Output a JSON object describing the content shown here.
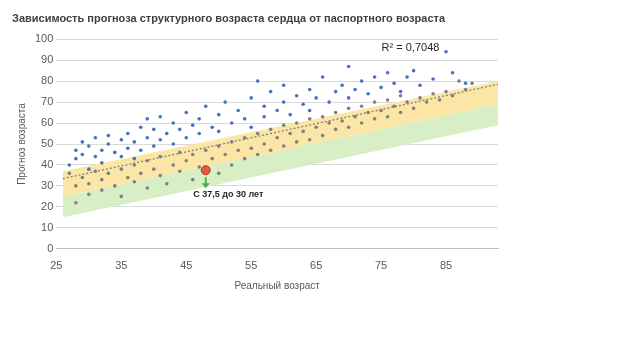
{
  "chart_data": {
    "type": "scatter",
    "title": "Зависимость прогноза структурного возраста сердца от паспортного возраста",
    "x_label": "Реальный возраст",
    "y_label": "Прогноз возраста",
    "xlim": [
      25,
      93
    ],
    "xticks": [
      25,
      35,
      45,
      55,
      65,
      75,
      85
    ],
    "ylim": [
      0,
      100
    ],
    "yticks": [
      0,
      10,
      20,
      30,
      40,
      50,
      60,
      70,
      80,
      90,
      100
    ],
    "grid": true,
    "annotations": [
      {
        "text": "R² = 0,7048",
        "x": 76,
        "y": 96
      },
      {
        "text": "С 37,5 до 30 лет",
        "x": 47,
        "y": 26
      }
    ],
    "series": [
      {
        "type": "band",
        "color": "#fce6a6",
        "upper": [
          [
            26,
            37
          ],
          [
            93,
            80
          ]
        ],
        "lower": [
          [
            26,
            25
          ],
          [
            93,
            69
          ]
        ]
      },
      {
        "type": "band",
        "color": "#d8efc6",
        "upper": [
          [
            26,
            25
          ],
          [
            93,
            69
          ]
        ],
        "lower": [
          [
            26,
            15
          ],
          [
            93,
            59
          ]
        ]
      },
      {
        "type": "line",
        "line_style": "dotted",
        "color": "#7f7f7f",
        "values": [
          [
            26,
            33.5
          ],
          [
            93,
            78.5
          ]
        ]
      },
      {
        "type": "scatter",
        "marker": "dot",
        "color": "#4472c4",
        "values": [
          [
            27,
            40
          ],
          [
            28,
            43
          ],
          [
            28,
            47
          ],
          [
            29,
            45
          ],
          [
            29,
            51
          ],
          [
            30,
            38
          ],
          [
            30,
            49
          ],
          [
            31,
            44
          ],
          [
            31,
            53
          ],
          [
            32,
            41
          ],
          [
            32,
            47
          ],
          [
            33,
            54
          ],
          [
            33,
            50
          ],
          [
            34,
            46
          ],
          [
            35,
            44
          ],
          [
            35,
            52
          ],
          [
            36,
            48
          ],
          [
            36,
            55
          ],
          [
            37,
            43
          ],
          [
            37,
            51
          ],
          [
            38,
            47
          ],
          [
            38,
            58
          ],
          [
            39,
            53
          ],
          [
            39,
            62
          ],
          [
            40,
            49
          ],
          [
            40,
            57
          ],
          [
            41,
            52
          ],
          [
            41,
            63
          ],
          [
            42,
            55
          ],
          [
            43,
            50
          ],
          [
            43,
            60
          ],
          [
            44,
            57
          ],
          [
            45,
            53
          ],
          [
            45,
            65
          ],
          [
            46,
            59
          ],
          [
            47,
            62
          ],
          [
            47,
            55
          ],
          [
            48,
            68
          ],
          [
            49,
            58
          ],
          [
            50,
            64
          ],
          [
            50,
            56
          ],
          [
            51,
            70
          ],
          [
            52,
            60
          ],
          [
            53,
            66
          ],
          [
            54,
            62
          ],
          [
            55,
            72
          ],
          [
            55,
            58
          ],
          [
            56,
            80
          ],
          [
            57,
            68
          ],
          [
            57,
            63
          ],
          [
            58,
            75
          ],
          [
            59,
            66
          ],
          [
            60,
            70
          ],
          [
            60,
            78
          ],
          [
            61,
            64
          ],
          [
            62,
            73
          ],
          [
            63,
            69
          ],
          [
            64,
            76
          ],
          [
            64,
            66
          ],
          [
            65,
            72
          ],
          [
            66,
            82
          ],
          [
            67,
            70
          ],
          [
            68,
            75
          ],
          [
            69,
            78
          ],
          [
            70,
            87
          ],
          [
            70,
            72
          ],
          [
            71,
            76
          ],
          [
            72,
            80
          ],
          [
            73,
            74
          ],
          [
            74,
            82
          ],
          [
            75,
            77
          ],
          [
            76,
            84
          ],
          [
            77,
            79
          ],
          [
            78,
            75
          ],
          [
            79,
            82
          ],
          [
            80,
            85
          ],
          [
            81,
            78
          ],
          [
            83,
            81
          ],
          [
            85,
            94
          ],
          [
            86,
            84
          ],
          [
            88,
            79
          ]
        ]
      },
      {
        "type": "scatter",
        "marker": "dot",
        "color": "#808080",
        "values": [
          [
            27,
            36
          ],
          [
            28,
            30
          ],
          [
            28,
            22
          ],
          [
            29,
            34
          ],
          [
            30,
            31
          ],
          [
            30,
            26
          ],
          [
            31,
            37
          ],
          [
            32,
            33
          ],
          [
            32,
            28
          ],
          [
            33,
            36
          ],
          [
            34,
            30
          ],
          [
            35,
            38
          ],
          [
            35,
            25
          ],
          [
            36,
            34
          ],
          [
            37,
            32
          ],
          [
            37,
            40
          ],
          [
            38,
            36
          ],
          [
            39,
            29
          ],
          [
            39,
            42
          ],
          [
            40,
            38
          ],
          [
            41,
            35
          ],
          [
            41,
            44
          ],
          [
            42,
            31
          ],
          [
            43,
            40
          ],
          [
            44,
            37
          ],
          [
            44,
            46
          ],
          [
            45,
            42
          ],
          [
            46,
            33
          ],
          [
            46,
            45
          ],
          [
            47,
            39
          ],
          [
            48,
            47
          ],
          [
            49,
            43
          ],
          [
            50,
            36
          ],
          [
            50,
            49
          ],
          [
            51,
            45
          ],
          [
            52,
            40
          ],
          [
            52,
            51
          ],
          [
            53,
            47
          ],
          [
            54,
            43
          ],
          [
            54,
            53
          ],
          [
            55,
            48
          ],
          [
            56,
            45
          ],
          [
            56,
            55
          ],
          [
            57,
            50
          ],
          [
            58,
            47
          ],
          [
            58,
            57
          ],
          [
            59,
            53
          ],
          [
            60,
            49
          ],
          [
            60,
            59
          ],
          [
            61,
            55
          ],
          [
            62,
            51
          ],
          [
            62,
            60
          ],
          [
            63,
            56
          ],
          [
            64,
            52
          ],
          [
            64,
            62
          ],
          [
            65,
            58
          ],
          [
            66,
            54
          ],
          [
            66,
            63
          ],
          [
            67,
            60
          ],
          [
            68,
            57
          ],
          [
            68,
            65
          ],
          [
            69,
            61
          ],
          [
            70,
            58
          ],
          [
            70,
            67
          ],
          [
            71,
            63
          ],
          [
            72,
            60
          ],
          [
            72,
            68
          ],
          [
            73,
            65
          ],
          [
            74,
            62
          ],
          [
            74,
            70
          ],
          [
            75,
            66
          ],
          [
            76,
            63
          ],
          [
            76,
            71
          ],
          [
            77,
            68
          ],
          [
            78,
            65
          ],
          [
            78,
            73
          ],
          [
            79,
            70
          ],
          [
            80,
            67
          ],
          [
            81,
            72
          ],
          [
            82,
            70
          ],
          [
            83,
            74
          ],
          [
            84,
            71
          ],
          [
            85,
            75
          ],
          [
            86,
            73
          ],
          [
            87,
            80
          ],
          [
            88,
            76
          ],
          [
            89,
            79
          ]
        ]
      },
      {
        "type": "scatter",
        "marker": "circle",
        "color": "#e8563c",
        "values": [
          [
            48,
            37.5
          ]
        ]
      }
    ]
  }
}
